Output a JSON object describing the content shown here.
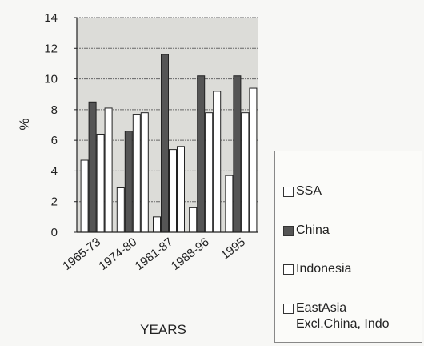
{
  "chart_data": {
    "type": "bar",
    "categories": [
      "1965-73",
      "1974-80",
      "1981-87",
      "1988-96",
      "1995"
    ],
    "series": [
      {
        "name": "SSA",
        "values": [
          4.7,
          2.9,
          1.0,
          1.6,
          3.7
        ],
        "color": "#ffffff"
      },
      {
        "name": "China",
        "values": [
          8.5,
          6.6,
          11.6,
          10.2,
          10.2
        ],
        "color": "#555555"
      },
      {
        "name": "Indonesia",
        "values": [
          6.4,
          7.7,
          5.4,
          7.8,
          7.8
        ],
        "color": "#ffffff"
      },
      {
        "name": "EastAsia\nExcl.China, Indo",
        "values": [
          8.1,
          7.8,
          5.6,
          9.2,
          9.4
        ],
        "color": "#ffffff"
      }
    ],
    "title": "",
    "xlabel": "YEARS",
    "ylabel": "%",
    "ylim": [
      0,
      14
    ],
    "yticks": [
      0,
      2,
      4,
      6,
      8,
      10,
      12,
      14
    ],
    "grid": true,
    "legend_position": "right"
  }
}
